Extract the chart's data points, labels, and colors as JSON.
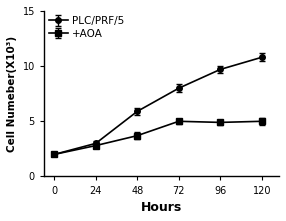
{
  "x": [
    0,
    24,
    48,
    72,
    96,
    120
  ],
  "plc_y": [
    2.0,
    3.0,
    5.9,
    8.0,
    9.7,
    10.8
  ],
  "plc_yerr": [
    0.15,
    0.2,
    0.35,
    0.35,
    0.3,
    0.35
  ],
  "aoa_y": [
    2.0,
    2.8,
    3.7,
    5.0,
    4.9,
    5.0
  ],
  "aoa_yerr": [
    0.15,
    0.2,
    0.3,
    0.25,
    0.25,
    0.3
  ],
  "xlabel": "Hours",
  "ylabel": "Cell Numeber(X10³)",
  "ylim": [
    0,
    15
  ],
  "yticks": [
    0,
    5,
    10,
    15
  ],
  "xticks": [
    0,
    24,
    48,
    72,
    96,
    120
  ],
  "legend_plc": "PLC/PRF/5",
  "legend_aoa": "+AOA",
  "line_color": "#000000",
  "marker_plc": "o",
  "marker_aoa": "s",
  "markersize": 4,
  "linewidth": 1.2,
  "capsize": 2,
  "elinewidth": 1.0,
  "label_fontsize": 8,
  "tick_fontsize": 7,
  "legend_fontsize": 7.5
}
